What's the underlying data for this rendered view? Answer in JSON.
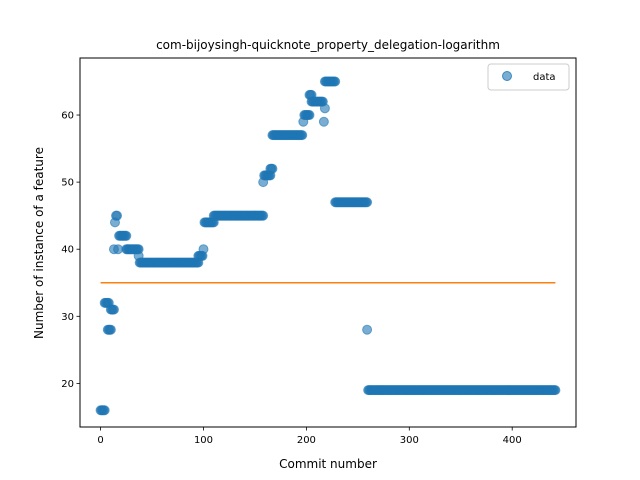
{
  "chart_data": {
    "type": "scatter",
    "title": "com-bijoysingh-quicknote_property_delegation-logarithm",
    "xlabel": "Commit number",
    "ylabel": "Number of instance of a feature",
    "xlim": [
      -20,
      462
    ],
    "ylim": [
      13.5,
      68.5
    ],
    "xticks": [
      0,
      100,
      200,
      300,
      400
    ],
    "yticks": [
      20,
      30,
      40,
      50,
      60
    ],
    "grid": false,
    "legend": {
      "placement": "top-right",
      "entries": [
        {
          "label": "data",
          "marker": "circle"
        }
      ]
    },
    "colors": {
      "data": "#1f77b4",
      "reference_line": "#ff7f0e"
    },
    "series": [
      {
        "name": "data",
        "kind": "scatter",
        "segments": [
          {
            "x_start": 0,
            "x_end": 4,
            "y": 16
          },
          {
            "x_start": 4,
            "x_end": 8,
            "y": 32
          },
          {
            "x_start": 7,
            "x_end": 10,
            "y": 28
          },
          {
            "x_start": 10,
            "x_end": 13,
            "y": 31
          },
          {
            "x_start": 13,
            "x_end": 13,
            "y": 40
          },
          {
            "x_start": 14,
            "x_end": 14,
            "y": 44
          },
          {
            "x_start": 15,
            "x_end": 16,
            "y": 45
          },
          {
            "x_start": 17,
            "x_end": 17,
            "y": 40
          },
          {
            "x_start": 18,
            "x_end": 25,
            "y": 42
          },
          {
            "x_start": 25,
            "x_end": 37,
            "y": 40
          },
          {
            "x_start": 37,
            "x_end": 37,
            "y": 39
          },
          {
            "x_start": 38,
            "x_end": 95,
            "y": 38
          },
          {
            "x_start": 95,
            "x_end": 99,
            "y": 39
          },
          {
            "x_start": 100,
            "x_end": 100,
            "y": 40
          },
          {
            "x_start": 101,
            "x_end": 110,
            "y": 44
          },
          {
            "x_start": 110,
            "x_end": 158,
            "y": 45
          },
          {
            "x_start": 158,
            "x_end": 158,
            "y": 50
          },
          {
            "x_start": 159,
            "x_end": 165,
            "y": 51
          },
          {
            "x_start": 165,
            "x_end": 167,
            "y": 52
          },
          {
            "x_start": 167,
            "x_end": 196,
            "y": 57
          },
          {
            "x_start": 197,
            "x_end": 197,
            "y": 59
          },
          {
            "x_start": 198,
            "x_end": 203,
            "y": 60
          },
          {
            "x_start": 203,
            "x_end": 205,
            "y": 63
          },
          {
            "x_start": 205,
            "x_end": 216,
            "y": 62
          },
          {
            "x_start": 217,
            "x_end": 217,
            "y": 59
          },
          {
            "x_start": 218,
            "x_end": 218,
            "y": 61
          },
          {
            "x_start": 218,
            "x_end": 228,
            "y": 65
          },
          {
            "x_start": 228,
            "x_end": 259,
            "y": 47
          },
          {
            "x_start": 259,
            "x_end": 259,
            "y": 28
          },
          {
            "x_start": 260,
            "x_end": 442,
            "y": 19
          }
        ]
      },
      {
        "name": "reference",
        "kind": "line",
        "points": [
          [
            0,
            35
          ],
          [
            442,
            35
          ]
        ]
      }
    ]
  }
}
